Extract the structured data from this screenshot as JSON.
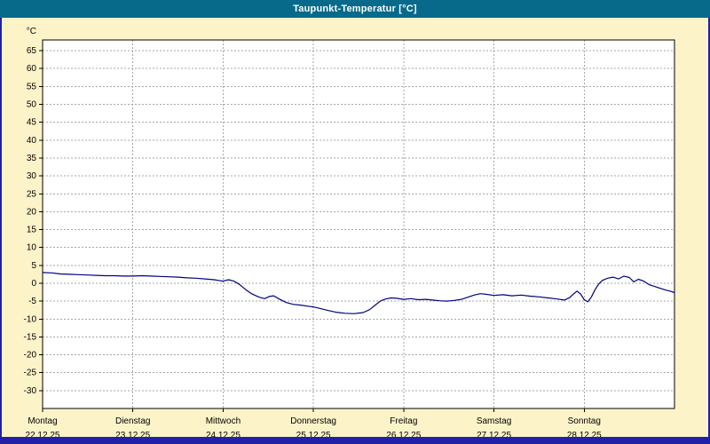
{
  "window": {
    "title": "Taupunkt-Temperatur [°C]"
  },
  "colors": {
    "titlebar": "#076a8b",
    "title_text": "#ffffff",
    "background": "#fcf4c8",
    "plot_background": "#ffffff",
    "plot_border": "#000000",
    "grid": "#a6a6a6",
    "axis_text": "#000000",
    "line": "#000080",
    "frame": "#2020a8"
  },
  "axis": {
    "unit_label": "°C"
  },
  "chart_data": {
    "type": "line",
    "title": "Taupunkt-Temperatur [°C]",
    "ylabel": "°C",
    "ylim": [
      -35,
      68
    ],
    "yticks": [
      65,
      60,
      55,
      50,
      45,
      40,
      35,
      30,
      25,
      20,
      15,
      10,
      5,
      0,
      -5,
      -10,
      -15,
      -20,
      -25,
      -30
    ],
    "xlim": [
      0,
      7
    ],
    "x_unit": "days",
    "grid": true,
    "legend": false,
    "days": [
      {
        "name": "Montag",
        "date": "22.12.25"
      },
      {
        "name": "Dienstag",
        "date": "23.12.25"
      },
      {
        "name": "Mittwoch",
        "date": "24.12.25"
      },
      {
        "name": "Donnerstag",
        "date": "25.12.25"
      },
      {
        "name": "Freitag",
        "date": "26.12.25"
      },
      {
        "name": "Samstag",
        "date": "27.12.25"
      },
      {
        "name": "Sonntag",
        "date": "28.12.25"
      }
    ],
    "series": [
      {
        "name": "Taupunkt-Temperatur",
        "color": "#000080",
        "points": [
          [
            0.0,
            3.0
          ],
          [
            0.1,
            2.9
          ],
          [
            0.2,
            2.6
          ],
          [
            0.3,
            2.5
          ],
          [
            0.4,
            2.4
          ],
          [
            0.5,
            2.3
          ],
          [
            0.6,
            2.2
          ],
          [
            0.7,
            2.1
          ],
          [
            0.8,
            2.1
          ],
          [
            0.9,
            2.0
          ],
          [
            1.0,
            2.0
          ],
          [
            1.1,
            2.1
          ],
          [
            1.2,
            2.0
          ],
          [
            1.3,
            1.9
          ],
          [
            1.4,
            1.8
          ],
          [
            1.5,
            1.7
          ],
          [
            1.6,
            1.5
          ],
          [
            1.7,
            1.4
          ],
          [
            1.8,
            1.2
          ],
          [
            1.9,
            1.0
          ],
          [
            1.95,
            0.8
          ],
          [
            2.0,
            0.6
          ],
          [
            2.06,
            1.0
          ],
          [
            2.12,
            0.6
          ],
          [
            2.18,
            -0.3
          ],
          [
            2.25,
            -1.8
          ],
          [
            2.32,
            -3.0
          ],
          [
            2.4,
            -3.9
          ],
          [
            2.46,
            -4.3
          ],
          [
            2.51,
            -3.7
          ],
          [
            2.56,
            -3.5
          ],
          [
            2.62,
            -4.4
          ],
          [
            2.7,
            -5.4
          ],
          [
            2.78,
            -5.9
          ],
          [
            2.86,
            -6.1
          ],
          [
            2.94,
            -6.4
          ],
          [
            3.0,
            -6.6
          ],
          [
            3.08,
            -7.1
          ],
          [
            3.16,
            -7.6
          ],
          [
            3.25,
            -8.1
          ],
          [
            3.35,
            -8.4
          ],
          [
            3.45,
            -8.5
          ],
          [
            3.55,
            -8.2
          ],
          [
            3.62,
            -7.4
          ],
          [
            3.68,
            -6.2
          ],
          [
            3.74,
            -5.0
          ],
          [
            3.8,
            -4.4
          ],
          [
            3.86,
            -4.1
          ],
          [
            3.92,
            -4.2
          ],
          [
            4.0,
            -4.5
          ],
          [
            4.08,
            -4.3
          ],
          [
            4.16,
            -4.6
          ],
          [
            4.24,
            -4.5
          ],
          [
            4.32,
            -4.7
          ],
          [
            4.4,
            -4.9
          ],
          [
            4.48,
            -5.0
          ],
          [
            4.56,
            -4.8
          ],
          [
            4.64,
            -4.5
          ],
          [
            4.7,
            -4.0
          ],
          [
            4.78,
            -3.3
          ],
          [
            4.85,
            -2.9
          ],
          [
            4.92,
            -3.1
          ],
          [
            5.0,
            -3.4
          ],
          [
            5.1,
            -3.2
          ],
          [
            5.2,
            -3.5
          ],
          [
            5.3,
            -3.3
          ],
          [
            5.4,
            -3.6
          ],
          [
            5.5,
            -3.8
          ],
          [
            5.6,
            -4.1
          ],
          [
            5.7,
            -4.4
          ],
          [
            5.78,
            -4.7
          ],
          [
            5.84,
            -4.0
          ],
          [
            5.88,
            -3.0
          ],
          [
            5.92,
            -2.2
          ],
          [
            5.96,
            -3.0
          ],
          [
            6.0,
            -4.6
          ],
          [
            6.04,
            -5.2
          ],
          [
            6.08,
            -3.8
          ],
          [
            6.12,
            -1.8
          ],
          [
            6.16,
            -0.2
          ],
          [
            6.2,
            0.8
          ],
          [
            6.26,
            1.4
          ],
          [
            6.32,
            1.7
          ],
          [
            6.38,
            1.2
          ],
          [
            6.44,
            2.0
          ],
          [
            6.5,
            1.6
          ],
          [
            6.55,
            0.4
          ],
          [
            6.6,
            1.1
          ],
          [
            6.66,
            0.6
          ],
          [
            6.72,
            -0.4
          ],
          [
            6.78,
            -0.9
          ],
          [
            6.84,
            -1.4
          ],
          [
            6.9,
            -1.9
          ],
          [
            6.95,
            -2.2
          ],
          [
            7.0,
            -2.6
          ]
        ]
      }
    ]
  }
}
